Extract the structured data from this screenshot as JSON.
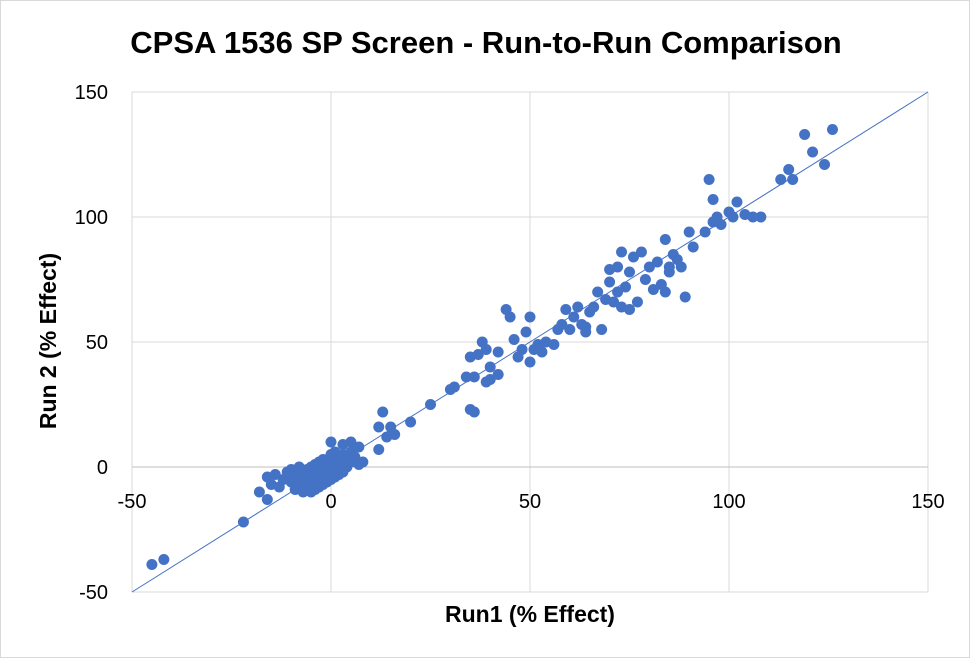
{
  "chart_data": {
    "type": "scatter",
    "title": "CPSA 1536 SP Screen - Run-to-Run Comparison",
    "xlabel": "Run1 (% Effect)",
    "ylabel": "Run 2 (% Effect)",
    "xlim": [
      -50,
      150
    ],
    "ylim": [
      -50,
      150
    ],
    "x_ticks": [
      -50,
      0,
      50,
      100,
      150
    ],
    "y_ticks": [
      -50,
      0,
      50,
      100,
      150
    ],
    "grid": true,
    "legend": "none",
    "marker_color": "#4472c4",
    "trendline": {
      "from": [
        -50,
        -50
      ],
      "to": [
        150,
        150
      ],
      "color": "#4472c4"
    },
    "series": [
      {
        "values": [
          [
            -45,
            -39
          ],
          [
            -42,
            -37
          ],
          [
            -22,
            -22
          ],
          [
            -16,
            -13
          ],
          [
            -18,
            -10
          ],
          [
            -15,
            -7
          ],
          [
            -16,
            -4
          ],
          [
            -14,
            -3
          ],
          [
            -13,
            -8
          ],
          [
            -12,
            -5
          ],
          [
            -11,
            -2
          ],
          [
            -10,
            -6
          ],
          [
            -10,
            -1
          ],
          [
            -9,
            -9
          ],
          [
            -9,
            -4
          ],
          [
            -8,
            -7
          ],
          [
            -8,
            -3
          ],
          [
            -8,
            0
          ],
          [
            -7,
            -10
          ],
          [
            -7,
            -5
          ],
          [
            -7,
            -2
          ],
          [
            -6,
            -8
          ],
          [
            -6,
            -4
          ],
          [
            -6,
            -1
          ],
          [
            -5,
            -10
          ],
          [
            -5,
            -6
          ],
          [
            -5,
            -3
          ],
          [
            -5,
            0
          ],
          [
            -4,
            -9
          ],
          [
            -4,
            -5
          ],
          [
            -4,
            -2
          ],
          [
            -4,
            1
          ],
          [
            -3,
            -8
          ],
          [
            -3,
            -4
          ],
          [
            -3,
            -1
          ],
          [
            -3,
            2
          ],
          [
            -2,
            -7
          ],
          [
            -2,
            -3
          ],
          [
            -2,
            0
          ],
          [
            -2,
            3
          ],
          [
            -1,
            -6
          ],
          [
            -1,
            -2
          ],
          [
            -1,
            1
          ],
          [
            0,
            -5
          ],
          [
            0,
            -1
          ],
          [
            0,
            2
          ],
          [
            0,
            5
          ],
          [
            0,
            10
          ],
          [
            1,
            -4
          ],
          [
            1,
            0
          ],
          [
            1,
            3
          ],
          [
            1,
            6
          ],
          [
            2,
            -3
          ],
          [
            2,
            1
          ],
          [
            2,
            4
          ],
          [
            3,
            -2
          ],
          [
            3,
            2
          ],
          [
            3,
            5
          ],
          [
            3,
            9
          ],
          [
            4,
            0
          ],
          [
            4,
            3
          ],
          [
            5,
            2
          ],
          [
            5,
            6
          ],
          [
            5,
            10
          ],
          [
            6,
            4
          ],
          [
            7,
            1
          ],
          [
            7,
            8
          ],
          [
            8,
            2
          ],
          [
            12,
            16
          ],
          [
            12,
            7
          ],
          [
            13,
            22
          ],
          [
            14,
            12
          ],
          [
            15,
            16
          ],
          [
            16,
            13
          ],
          [
            20,
            18
          ],
          [
            25,
            25
          ],
          [
            30,
            31
          ],
          [
            31,
            32
          ],
          [
            34,
            36
          ],
          [
            35,
            44
          ],
          [
            35,
            23
          ],
          [
            36,
            22
          ],
          [
            36,
            36
          ],
          [
            37,
            45
          ],
          [
            38,
            50
          ],
          [
            39,
            47
          ],
          [
            39,
            34
          ],
          [
            40,
            35
          ],
          [
            40,
            40
          ],
          [
            42,
            37
          ],
          [
            42,
            46
          ],
          [
            44,
            63
          ],
          [
            45,
            60
          ],
          [
            46,
            51
          ],
          [
            47,
            44
          ],
          [
            48,
            47
          ],
          [
            49,
            54
          ],
          [
            50,
            42
          ],
          [
            50,
            60
          ],
          [
            51,
            47
          ],
          [
            52,
            49
          ],
          [
            53,
            46
          ],
          [
            54,
            50
          ],
          [
            56,
            49
          ],
          [
            57,
            55
          ],
          [
            58,
            57
          ],
          [
            59,
            63
          ],
          [
            60,
            55
          ],
          [
            61,
            60
          ],
          [
            62,
            64
          ],
          [
            63,
            57
          ],
          [
            64,
            56
          ],
          [
            64,
            54
          ],
          [
            65,
            62
          ],
          [
            66,
            64
          ],
          [
            67,
            70
          ],
          [
            68,
            55
          ],
          [
            69,
            67
          ],
          [
            70,
            74
          ],
          [
            70,
            79
          ],
          [
            71,
            66
          ],
          [
            72,
            70
          ],
          [
            72,
            80
          ],
          [
            73,
            86
          ],
          [
            73,
            64
          ],
          [
            74,
            72
          ],
          [
            75,
            78
          ],
          [
            75,
            63
          ],
          [
            76,
            84
          ],
          [
            77,
            66
          ],
          [
            78,
            86
          ],
          [
            79,
            75
          ],
          [
            80,
            80
          ],
          [
            81,
            71
          ],
          [
            82,
            82
          ],
          [
            83,
            73
          ],
          [
            84,
            70
          ],
          [
            84,
            91
          ],
          [
            85,
            80
          ],
          [
            85,
            78
          ],
          [
            86,
            85
          ],
          [
            87,
            83
          ],
          [
            88,
            80
          ],
          [
            89,
            68
          ],
          [
            90,
            94
          ],
          [
            91,
            88
          ],
          [
            94,
            94
          ],
          [
            95,
            115
          ],
          [
            96,
            107
          ],
          [
            96,
            98
          ],
          [
            97,
            100
          ],
          [
            98,
            97
          ],
          [
            100,
            102
          ],
          [
            101,
            100
          ],
          [
            102,
            106
          ],
          [
            104,
            101
          ],
          [
            106,
            100
          ],
          [
            108,
            100
          ],
          [
            113,
            115
          ],
          [
            115,
            119
          ],
          [
            116,
            115
          ],
          [
            119,
            133
          ],
          [
            121,
            126
          ],
          [
            124,
            121
          ],
          [
            126,
            135
          ]
        ]
      }
    ]
  }
}
